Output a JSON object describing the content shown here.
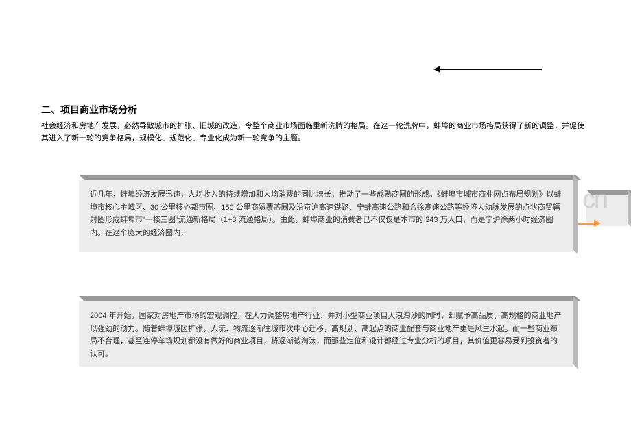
{
  "heading": "二、项目商业市场分析",
  "intro": "社会经济和房地产发展，必然导致城市的扩张、旧城的改造，令整个商业市场面临重新洗牌的格局。在这一轮洗牌中，蚌埠的商业市场格局获得了新的调整，并促使其进入了新一轮的竞争格局，规模化、规范化、专业化成为新一轮竞争的主题。",
  "box1": "近几年，蚌埠经济发展迅速，人均收入的持续增加和人均消费的同比增长，推动了一些成熟商圈的形成。《蚌埠市城市商业网点布局规划》以蚌埠市核心主城区、30 公里核心都市圈、150 公里商贸覆盖圈及沿京沪高速铁路、宁蚌高速公路和合徐高速公路等经济大动脉发展的点状商贸辐射圈形成蚌埠市\"一核三圈\"流通新格局（1+3 流通格局）。由此，蚌埠商业的消费者已不仅仅是本市的 343 万人口，而是宁沪徐两小时经济圈内。在这个庞大的经济圈内，",
  "box2": "2004 年开始，国家对房地产市场的宏观调控，在大力调整房地产行业、并对小型商业项目大浪淘沙的同时，却赋予高品质、高规格的商业地产以强劲的动力。随着蚌埠城区扩张，人流、物流逐渐往城市次中心迁移，高规划、高起点的商业配套与商业地产更是风生水起。而一些商业布局不合理，甚至连停车场规划都没有做好的商业项目，将逐渐被淘汰，而那些定位和设计都经过专业分析的项目，其价值更容易受到投资者的认可。",
  "watermark": "cn",
  "colors": {
    "background": "#ffffff",
    "text": "#000000",
    "box_bg": "#ececec",
    "box_top_shadow": "#999999",
    "box_side_shadow": "#b8b8b8",
    "orange_arrow": "#ff9933",
    "watermark": "rgba(180,180,180,0.5)"
  }
}
